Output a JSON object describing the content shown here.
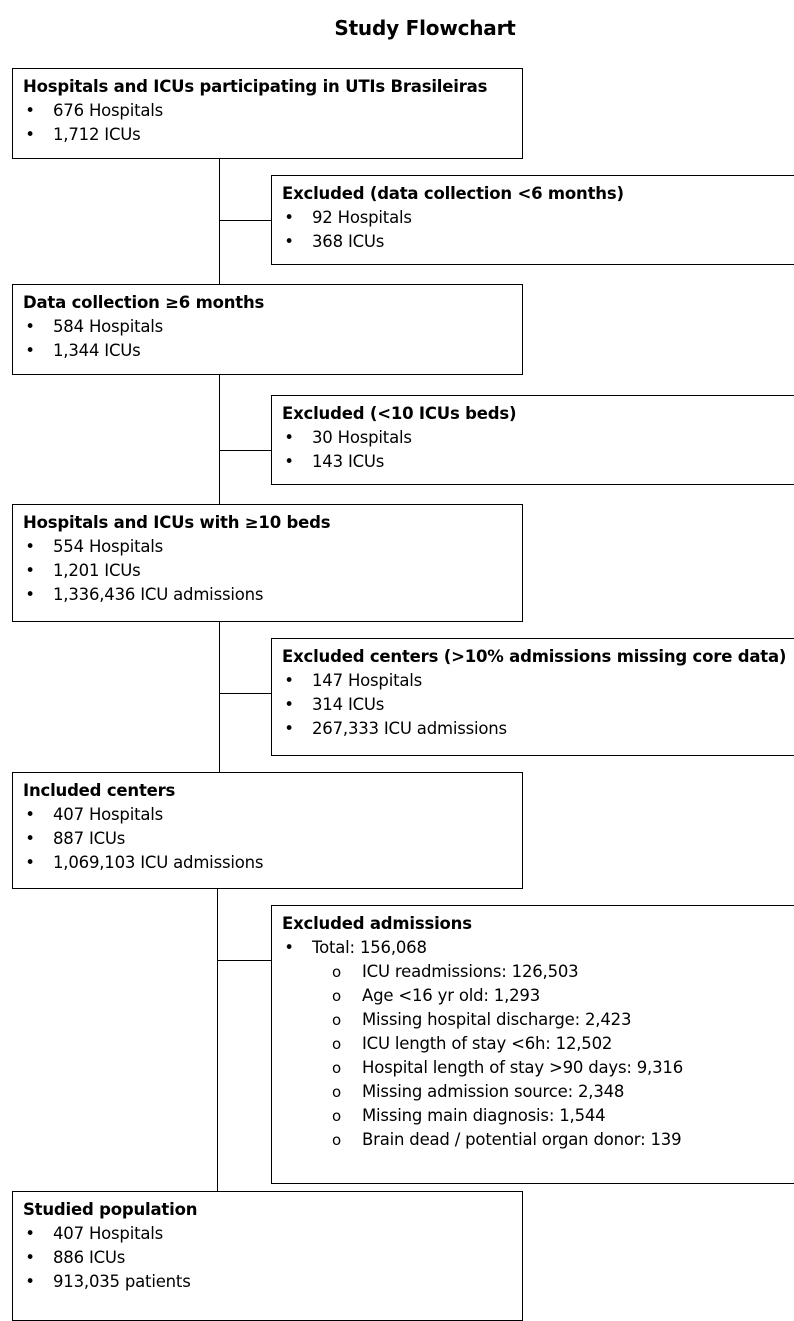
{
  "title": "Study Flowchart",
  "boxes": {
    "participating": {
      "heading": "Hospitals and ICUs participating in UTIs Brasileiras",
      "items": [
        "676 Hospitals",
        "1,712 ICUs"
      ]
    },
    "excluded_months": {
      "heading": "Excluded (data collection <6 months)",
      "items": [
        "92 Hospitals",
        "368 ICUs"
      ]
    },
    "data_collection": {
      "heading": "Data collection ≥6 months",
      "items": [
        "584 Hospitals",
        "1,344 ICUs"
      ]
    },
    "excluded_beds": {
      "heading": "Excluded (<10 ICUs beds)",
      "items": [
        "30 Hospitals",
        "143 ICUs"
      ]
    },
    "ten_beds": {
      "heading": "Hospitals and ICUs with ≥10 beds",
      "items": [
        "554 Hospitals",
        "1,201 ICUs",
        "1,336,436 ICU admissions"
      ]
    },
    "excluded_centers": {
      "heading": "Excluded centers (>10% admissions missing core data)",
      "items": [
        "147 Hospitals",
        "314 ICUs",
        "267,333 ICU admissions"
      ]
    },
    "included_centers": {
      "heading": "Included centers",
      "items": [
        "407 Hospitals",
        "887 ICUs",
        "1,069,103 ICU admissions"
      ]
    },
    "excluded_admissions": {
      "heading": "Excluded admissions",
      "total": "Total: 156,068",
      "subitems": [
        "ICU readmissions: 126,503",
        "Age <16 yr old: 1,293",
        "Missing hospital discharge: 2,423",
        "ICU length of stay  <6h: 12,502",
        "Hospital length of stay >90 days: 9,316",
        "Missing admission source: 2,348",
        "Missing main diagnosis: 1,544",
        "Brain dead / potential organ donor: 139"
      ]
    },
    "studied_population": {
      "heading": "Studied population",
      "items": [
        "407 Hospitals",
        "886 ICUs",
        "913,035 patients"
      ]
    }
  }
}
